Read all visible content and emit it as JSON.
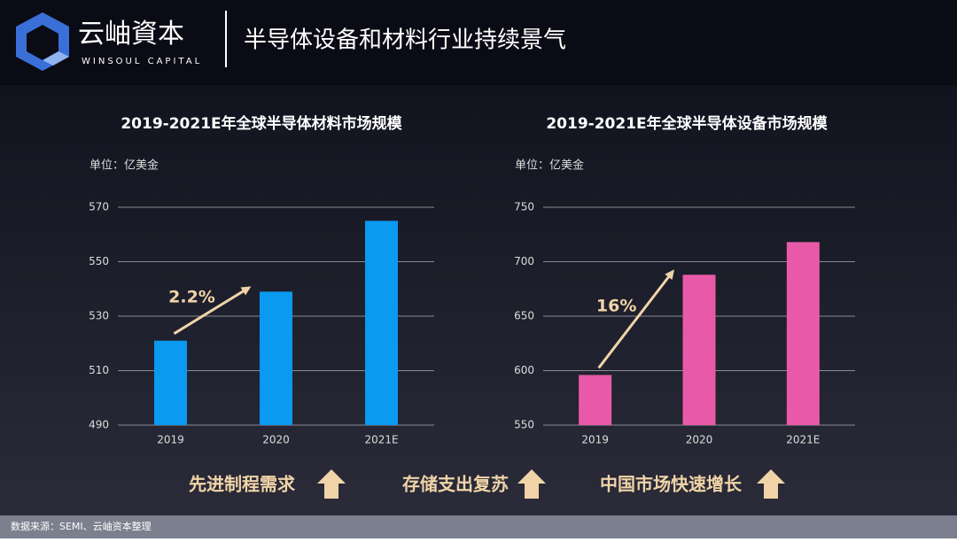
{
  "header": {
    "logo_name": "云岫資本",
    "logo_sub": "WINSOUL CAPITAL",
    "title": "半导体设备和材料行业持续景气"
  },
  "chart_data": [
    {
      "type": "bar",
      "title": "2019-2021E年全球半导体材料市场规模",
      "unit": "单位：亿美金",
      "categories": [
        "2019",
        "2020",
        "2021E"
      ],
      "values": [
        521,
        539,
        565
      ],
      "color": "#0a9af0",
      "ylim": [
        490,
        570
      ],
      "yticks": [
        490,
        510,
        530,
        550,
        570
      ],
      "grid": true,
      "annotation": "2.2%"
    },
    {
      "type": "bar",
      "title": "2019-2021E年全球半导体设备市场规模",
      "unit": "单位：亿美金",
      "categories": [
        "2019",
        "2020",
        "2021E"
      ],
      "values": [
        596,
        688,
        718
      ],
      "color": "#e85aa8",
      "ylim": [
        550,
        750
      ],
      "yticks": [
        550,
        600,
        650,
        700,
        750
      ],
      "grid": true,
      "annotation": "16%"
    }
  ],
  "tags": [
    "先进制程需求",
    "存储支出复苏",
    "中国市场快速增长"
  ],
  "footer": {
    "source": "数据来源：SEMI、云岫资本整理"
  }
}
